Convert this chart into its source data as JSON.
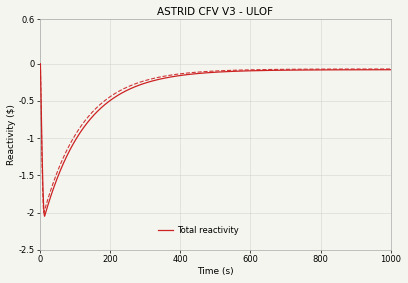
{
  "title": "ASTRID CFV V3 - ULOF",
  "xlabel": "Time (s)",
  "ylabel": "Reactivity ($)",
  "xlim": [
    0,
    1000
  ],
  "ylim": [
    -2.5,
    0.6
  ],
  "yticks": [
    0.6,
    0,
    -0.5,
    -1,
    -1.5,
    -2,
    -2.5
  ],
  "ytick_labels": [
    "0.6",
    "0",
    "-0.5",
    "-1",
    "-1.5",
    "-2",
    "-2.5"
  ],
  "xticks": [
    0,
    200,
    400,
    600,
    800,
    1000
  ],
  "xtick_labels": [
    "0",
    "200",
    "400",
    "600",
    "800",
    "1000"
  ],
  "line_color": "#cc2222",
  "dashed_color": "#cc2222",
  "legend_label": "Total reactivity",
  "bg_color": "#f5f5f0",
  "grid_color": "#cccccc",
  "spine_color": "#aaaaaa"
}
